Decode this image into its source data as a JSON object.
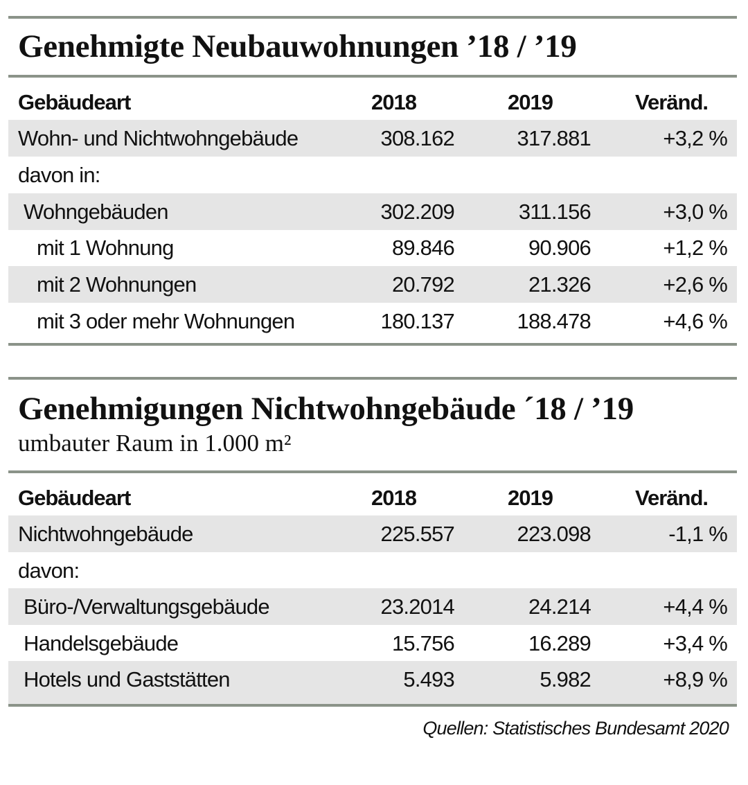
{
  "table1": {
    "title": "Genehmigte Neubauwohnungen ’18 / ’19",
    "headers": [
      "Gebäudeart",
      "2018",
      "2019",
      "Veränd."
    ],
    "rows": [
      {
        "label": "Wohn- und Nichtwohngebäude",
        "y2018": "308.162",
        "y2019": "317.881",
        "change": "+3,2 %"
      },
      {
        "label": "davon in:",
        "y2018": "",
        "y2019": "",
        "change": ""
      },
      {
        "label": "Wohngebäuden",
        "y2018": "302.209",
        "y2019": "311.156",
        "change": "+3,0 %"
      },
      {
        "label": "mit 1 Wohnung",
        "y2018": "89.846",
        "y2019": "90.906",
        "change": "+1,2 %"
      },
      {
        "label": "mit 2 Wohnungen",
        "y2018": "20.792",
        "y2019": "21.326",
        "change": "+2,6 %"
      },
      {
        "label": "mit 3 oder mehr Wohnungen",
        "y2018": "180.137",
        "y2019": "188.478",
        "change": "+4,6 %"
      }
    ]
  },
  "table2": {
    "title": "Genehmigungen Nichtwohngebäude ´18 / ’19",
    "subtitle": "umbauter Raum in 1.000 m²",
    "headers": [
      "Gebäudeart",
      "2018",
      "2019",
      "Veränd."
    ],
    "rows": [
      {
        "label": "Nichtwohngebäude",
        "y2018": "225.557",
        "y2019": "223.098",
        "change": "-1,1 %"
      },
      {
        "label": "davon:",
        "y2018": "",
        "y2019": "",
        "change": ""
      },
      {
        "label": "Büro-/Verwaltungsgebäude",
        "y2018": "23.2014",
        "y2019": "24.214",
        "change": "+4,4 %"
      },
      {
        "label": "Handelsgebäude",
        "y2018": "15.756",
        "y2019": "16.289",
        "change": "+3,4 %"
      },
      {
        "label": "Hotels und Gaststätten",
        "y2018": "5.493",
        "y2019": "5.982",
        "change": "+8,9 %"
      }
    ]
  },
  "source": "Quellen: Statistisches Bundesamt 2020",
  "colors": {
    "rule": "#8b9389",
    "row_shade": "#e5e5e5"
  }
}
